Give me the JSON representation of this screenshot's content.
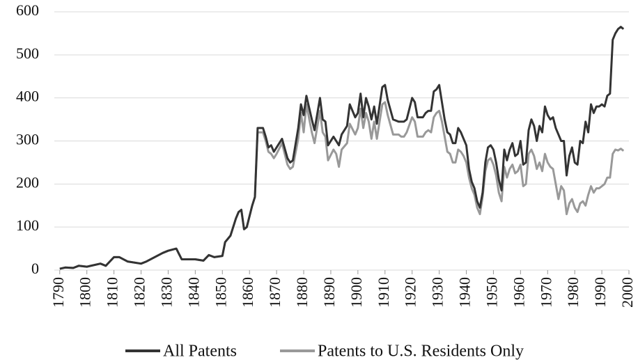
{
  "chart_data": {
    "type": "line",
    "x": [
      1790,
      1792,
      1795,
      1797,
      1800,
      1805,
      1807,
      1810,
      1812,
      1815,
      1820,
      1822,
      1825,
      1828,
      1830,
      1833,
      1835,
      1837,
      1840,
      1843,
      1845,
      1847,
      1850,
      1851,
      1853,
      1855,
      1856,
      1857,
      1858,
      1859,
      1861,
      1862,
      1863,
      1865,
      1866,
      1867,
      1868,
      1869,
      1870,
      1872,
      1874,
      1875,
      1876,
      1878,
      1879,
      1880,
      1881,
      1883,
      1884,
      1886,
      1887,
      1888,
      1889,
      1891,
      1892,
      1893,
      1894,
      1896,
      1897,
      1899,
      1900,
      1901,
      1902,
      1903,
      1904,
      1905,
      1906,
      1907,
      1909,
      1910,
      1911,
      1913,
      1915,
      1916,
      1917,
      1918,
      1920,
      1921,
      1922,
      1923,
      1924,
      1925,
      1926,
      1927,
      1928,
      1929,
      1930,
      1931,
      1932,
      1933,
      1934,
      1935,
      1936,
      1937,
      1938,
      1939,
      1940,
      1941,
      1942,
      1943,
      1944,
      1945,
      1946,
      1947,
      1948,
      1949,
      1950,
      1951,
      1952,
      1953,
      1954,
      1955,
      1956,
      1957,
      1958,
      1959,
      1960,
      1961,
      1962,
      1963,
      1964,
      1965,
      1966,
      1967,
      1968,
      1969,
      1970,
      1971,
      1972,
      1973,
      1974,
      1975,
      1976,
      1977,
      1978,
      1979,
      1980,
      1981,
      1982,
      1983,
      1984,
      1985,
      1986,
      1987,
      1988,
      1989,
      1990,
      1991,
      1992,
      1993,
      1994,
      1995,
      1996,
      1997,
      1998
    ],
    "series": [
      {
        "name": "All Patents",
        "color": "#333333",
        "values": [
          3,
          6,
          5,
          10,
          8,
          15,
          10,
          30,
          30,
          20,
          15,
          20,
          30,
          40,
          45,
          50,
          25,
          25,
          25,
          22,
          35,
          30,
          33,
          65,
          80,
          120,
          135,
          140,
          95,
          100,
          150,
          170,
          330,
          330,
          310,
          285,
          290,
          275,
          285,
          305,
          260,
          250,
          255,
          330,
          385,
          360,
          405,
          350,
          325,
          400,
          350,
          345,
          290,
          310,
          300,
          290,
          315,
          335,
          385,
          355,
          365,
          410,
          355,
          400,
          380,
          350,
          380,
          340,
          425,
          430,
          395,
          350,
          345,
          345,
          345,
          350,
          400,
          390,
          355,
          355,
          355,
          365,
          370,
          370,
          415,
          420,
          430,
          390,
          350,
          320,
          315,
          295,
          295,
          330,
          320,
          305,
          290,
          235,
          205,
          190,
          160,
          145,
          180,
          250,
          285,
          290,
          280,
          250,
          210,
          185,
          280,
          255,
          280,
          295,
          265,
          270,
          300,
          245,
          250,
          325,
          350,
          335,
          300,
          335,
          320,
          380,
          360,
          350,
          355,
          330,
          315,
          300,
          300,
          220,
          265,
          285,
          250,
          245,
          300,
          295,
          345,
          320,
          385,
          365,
          380,
          380,
          385,
          380,
          405,
          410,
          535,
          550,
          560,
          565,
          560
        ]
      },
      {
        "name": "Patents to U.S. Residents Only",
        "color": "#999999",
        "values": [
          3,
          6,
          5,
          10,
          8,
          15,
          10,
          30,
          30,
          20,
          15,
          20,
          30,
          40,
          45,
          50,
          25,
          25,
          25,
          22,
          35,
          30,
          33,
          65,
          80,
          120,
          135,
          140,
          95,
          100,
          150,
          170,
          320,
          320,
          300,
          275,
          270,
          260,
          270,
          295,
          245,
          235,
          240,
          305,
          365,
          320,
          385,
          320,
          295,
          370,
          320,
          310,
          255,
          280,
          270,
          240,
          280,
          295,
          340,
          315,
          330,
          375,
          330,
          365,
          345,
          305,
          345,
          305,
          385,
          390,
          360,
          315,
          315,
          310,
          310,
          320,
          355,
          345,
          310,
          310,
          310,
          320,
          325,
          320,
          355,
          365,
          370,
          345,
          310,
          275,
          270,
          250,
          250,
          280,
          275,
          265,
          250,
          215,
          190,
          175,
          145,
          130,
          170,
          230,
          255,
          260,
          245,
          220,
          180,
          160,
          240,
          215,
          235,
          245,
          225,
          230,
          245,
          195,
          200,
          270,
          280,
          265,
          235,
          250,
          230,
          270,
          250,
          240,
          235,
          200,
          165,
          195,
          185,
          130,
          155,
          165,
          145,
          135,
          155,
          160,
          150,
          175,
          195,
          180,
          190,
          190,
          195,
          200,
          215,
          215,
          270,
          280,
          278,
          282,
          277
        ]
      }
    ],
    "xlim": [
      1788,
      2000
    ],
    "xticks": [
      1790,
      1800,
      1810,
      1820,
      1830,
      1840,
      1850,
      1860,
      1870,
      1880,
      1890,
      1900,
      1910,
      1920,
      1930,
      1940,
      1950,
      1960,
      1970,
      1980,
      1990,
      2000
    ],
    "ylim": [
      0,
      600
    ],
    "yticks": [
      0,
      100,
      200,
      300,
      400,
      500,
      600
    ],
    "grid": true,
    "legend": "bottom"
  }
}
